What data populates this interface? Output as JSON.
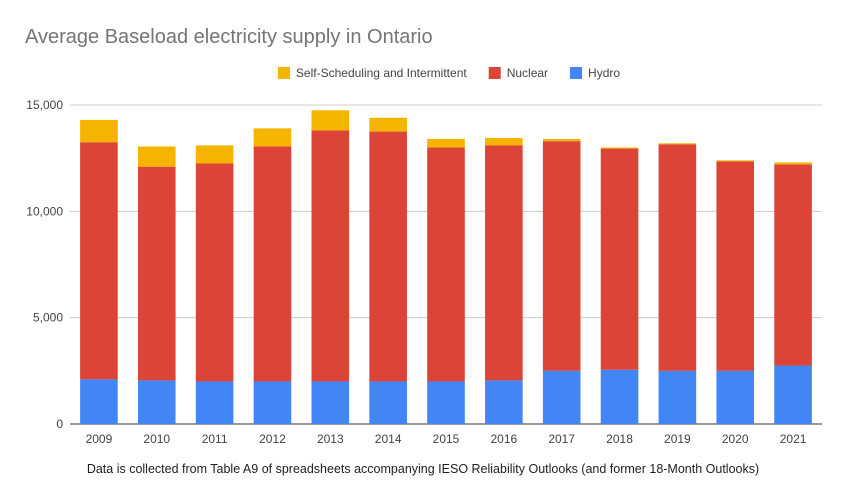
{
  "chart_data": {
    "type": "bar",
    "stacked": true,
    "title": "Average Baseload electricity supply in Ontario",
    "caption": "Data is collected from Table A9 of spreadsheets accompanying IESO Reliability Outlooks (and former 18-Month Outlooks)",
    "categories": [
      "2009",
      "2010",
      "2011",
      "2012",
      "2013",
      "2014",
      "2015",
      "2016",
      "2017",
      "2018",
      "2019",
      "2020",
      "2021"
    ],
    "series": [
      {
        "name": "Hydro",
        "color": "#4285f4",
        "values": [
          2100,
          2050,
          2000,
          2000,
          2000,
          2000,
          2000,
          2050,
          2500,
          2550,
          2500,
          2500,
          2750
        ]
      },
      {
        "name": "Nuclear",
        "color": "#db4437",
        "values": [
          11150,
          10050,
          10250,
          11050,
          11800,
          11750,
          11000,
          11050,
          10800,
          10400,
          10650,
          9850,
          9450
        ]
      },
      {
        "name": "Self-Scheduling and Intermittent",
        "color": "#f4b400",
        "values": [
          1050,
          950,
          850,
          850,
          950,
          650,
          400,
          350,
          100,
          50,
          50,
          50,
          100
        ]
      }
    ],
    "legend": {
      "position": "top",
      "order": [
        "Self-Scheduling and Intermittent",
        "Nuclear",
        "Hydro"
      ]
    },
    "ylim": [
      0,
      15000
    ],
    "yticks": [
      0,
      5000,
      10000,
      15000
    ],
    "ytick_labels": [
      "0",
      "5,000",
      "10,000",
      "15,000"
    ],
    "grid": true,
    "xlabel": "",
    "ylabel": ""
  }
}
